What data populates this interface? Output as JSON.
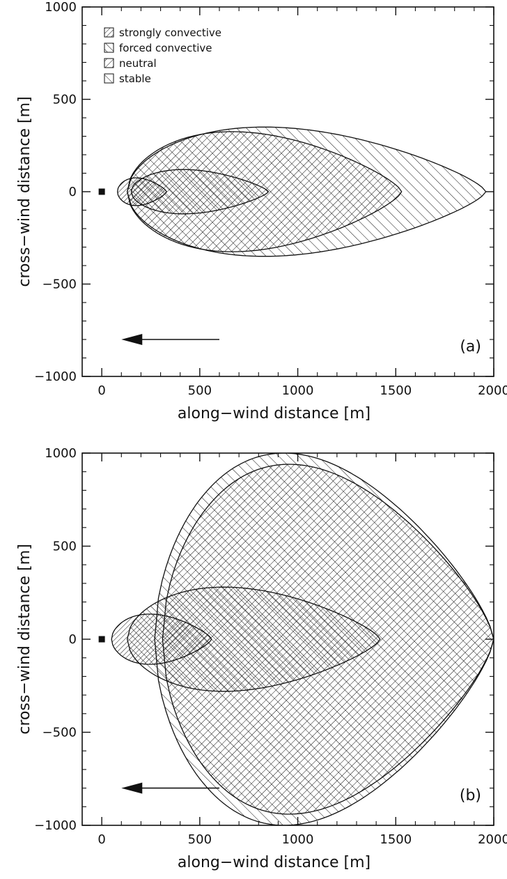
{
  "chart_data": [
    {
      "type": "area",
      "panel_label": "(a)",
      "xlabel": "along−wind distance [m]",
      "ylabel": "cross−wind distance [m]",
      "xlim": [
        -100,
        2000
      ],
      "ylim": [
        -1000,
        1000
      ],
      "xticks": [
        0,
        500,
        1000,
        1500,
        2000
      ],
      "yticks": [
        -1000,
        -500,
        0,
        500,
        1000
      ],
      "xtick_labels": [
        "0",
        "500",
        "1000",
        "1500",
        "2000"
      ],
      "ytick_labels": [
        "−1000",
        "−500",
        "0",
        "500",
        "1000"
      ],
      "legend": {
        "placement": "top-left",
        "entries": [
          "strongly convective",
          "forced convective",
          "neutral",
          "stable"
        ]
      },
      "source_marker": {
        "x": 0,
        "y": 0
      },
      "wind_arrow": {
        "from_x": 600,
        "to_x": 100,
        "y": -800
      },
      "series": [
        {
          "name": "stable",
          "x_start": 130,
          "x_end": 1960,
          "half_width_max": 350
        },
        {
          "name": "neutral",
          "x_start": 130,
          "x_end": 1530,
          "half_width_max": 325
        },
        {
          "name": "forced convective",
          "x_start": 150,
          "x_end": 850,
          "half_width_max": 120
        },
        {
          "name": "strongly convective",
          "x_start": 80,
          "x_end": 330,
          "half_width_max": 75
        }
      ]
    },
    {
      "type": "area",
      "panel_label": "(b)",
      "xlabel": "along−wind distance [m]",
      "ylabel": "cross−wind distance [m]",
      "xlim": [
        -100,
        2000
      ],
      "ylim": [
        -1000,
        1000
      ],
      "xticks": [
        0,
        500,
        1000,
        1500,
        2000
      ],
      "yticks": [
        -1000,
        -500,
        0,
        500,
        1000
      ],
      "xtick_labels": [
        "0",
        "500",
        "1000",
        "1500",
        "2000"
      ],
      "ytick_labels": [
        "−1000",
        "−500",
        "0",
        "500",
        "1000"
      ],
      "source_marker": {
        "x": 0,
        "y": 0
      },
      "wind_arrow": {
        "from_x": 600,
        "to_x": 100,
        "y": -800
      },
      "series": [
        {
          "name": "stable",
          "x_start": 270,
          "x_end": 2000,
          "half_width_max": 1000
        },
        {
          "name": "neutral",
          "x_start": 310,
          "x_end": 2000,
          "half_width_max": 940
        },
        {
          "name": "forced convective",
          "x_start": 130,
          "x_end": 1420,
          "half_width_max": 280
        },
        {
          "name": "strongly convective",
          "x_start": 50,
          "x_end": 560,
          "half_width_max": 135
        }
      ]
    }
  ]
}
